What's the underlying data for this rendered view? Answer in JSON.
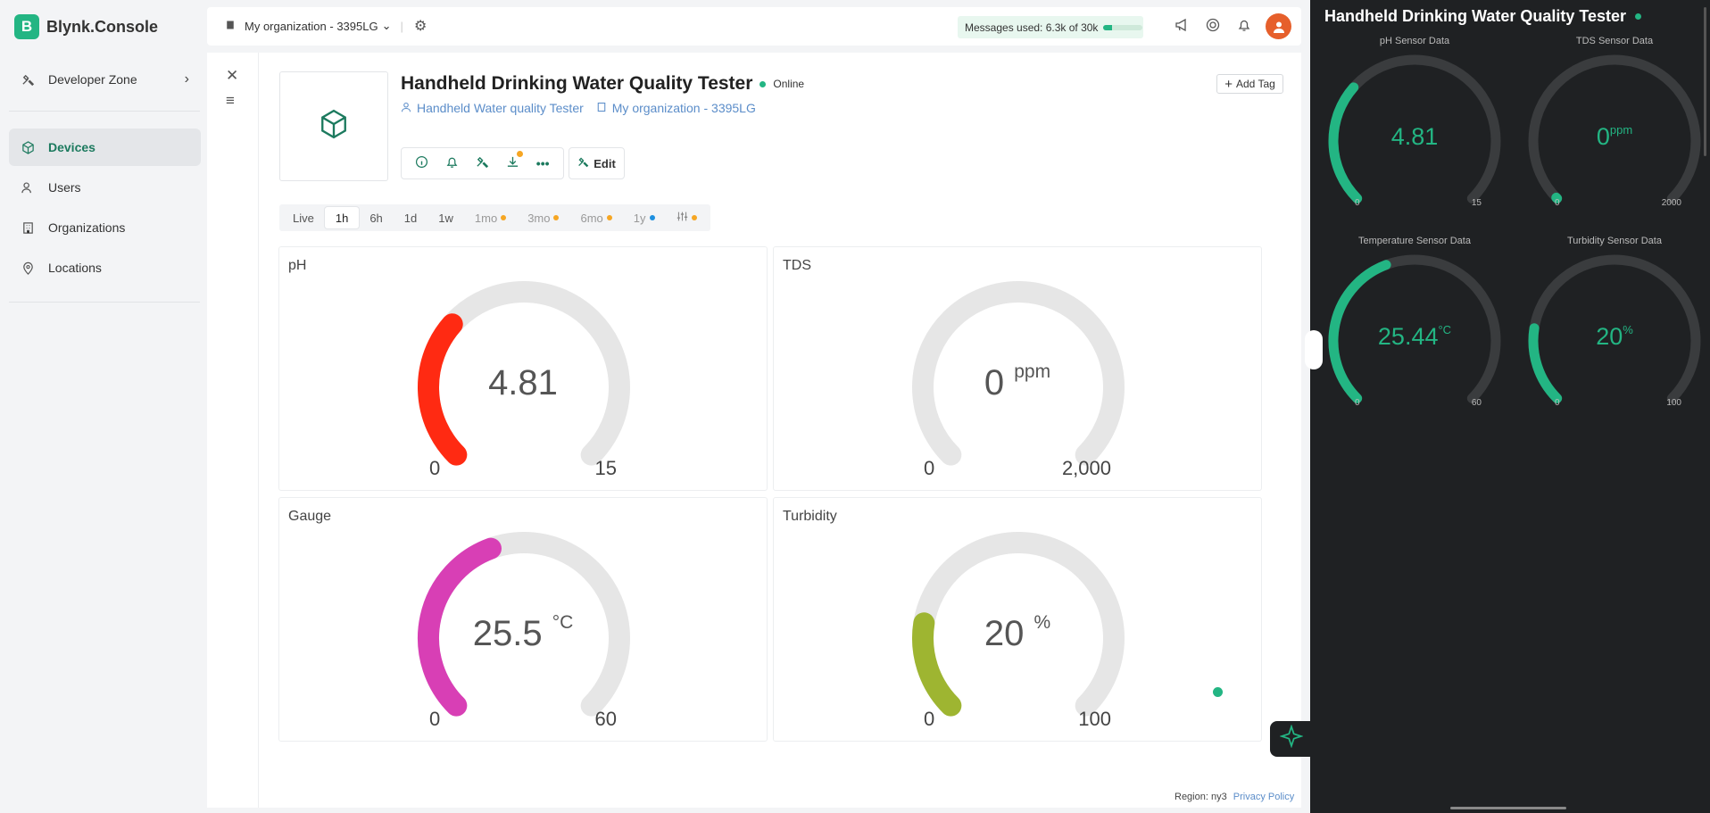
{
  "app": {
    "logo_letter": "B",
    "name": "Blynk.Console"
  },
  "sidebar": {
    "developer_zone": "Developer Zone",
    "items": [
      {
        "label": "Devices",
        "icon": "cube-icon",
        "active": true
      },
      {
        "label": "Users",
        "icon": "users-icon"
      },
      {
        "label": "Organizations",
        "icon": "building-icon"
      },
      {
        "label": "Locations",
        "icon": "pin-icon"
      }
    ]
  },
  "topbar": {
    "org": "My organization - 3395LG",
    "messages": "Messages used: 6.3k of 30k",
    "messages_fraction": 0.21
  },
  "device": {
    "title": "Handheld Drinking Water Quality Tester",
    "status": "Online",
    "template": "Handheld Water quality Tester",
    "org": "My organization - 3395LG",
    "add_tag": "Add Tag",
    "edit": "Edit"
  },
  "timebar": [
    {
      "label": "Live"
    },
    {
      "label": "1h",
      "active": true
    },
    {
      "label": "6h"
    },
    {
      "label": "1d"
    },
    {
      "label": "1w"
    },
    {
      "label": "1mo",
      "dot": "#f6a623"
    },
    {
      "label": "3mo",
      "dot": "#f6a623"
    },
    {
      "label": "6mo",
      "dot": "#f6a623"
    },
    {
      "label": "1y",
      "dot": "#1e90e0"
    }
  ],
  "tiles": [
    {
      "title": "pH",
      "value": "4.81",
      "unit": "",
      "min": "0",
      "max": "15",
      "fraction": 0.32,
      "color": "#ff2a12"
    },
    {
      "title": "TDS",
      "value": "0",
      "unit": "ppm",
      "min": "0",
      "max": "2,000",
      "fraction": 0,
      "color": "#23b583"
    },
    {
      "title": "Gauge",
      "value": "25.5",
      "unit": "°C",
      "min": "0",
      "max": "60",
      "fraction": 0.425,
      "color": "#d83fb5"
    },
    {
      "title": "Turbidity",
      "value": "20",
      "unit": "%",
      "min": "0",
      "max": "100",
      "fraction": 0.2,
      "color": "#9eb531"
    }
  ],
  "footer": {
    "region": "Region: ny3",
    "privacy": "Privacy Policy"
  },
  "mobile": {
    "title": "Handheld Drinking Water Quality Tester",
    "gauges": [
      {
        "label": "pH Sensor Data",
        "value": "4.81",
        "unit": "",
        "min": "0",
        "max": "15",
        "fraction": 0.32
      },
      {
        "label": "TDS Sensor Data",
        "value": "0",
        "unit": "ppm",
        "min": "0",
        "max": "2000",
        "fraction": 0
      },
      {
        "label": "Temperature Sensor Data",
        "value": "25.44",
        "unit": "°C",
        "min": "0",
        "max": "60",
        "fraction": 0.424
      },
      {
        "label": "Turbidity Sensor Data",
        "value": "20",
        "unit": "%",
        "min": "0",
        "max": "100",
        "fraction": 0.2
      }
    ]
  },
  "colors": {
    "accent": "#23b583",
    "mobile_bg": "#1f2123",
    "link": "#5b8dc9"
  }
}
